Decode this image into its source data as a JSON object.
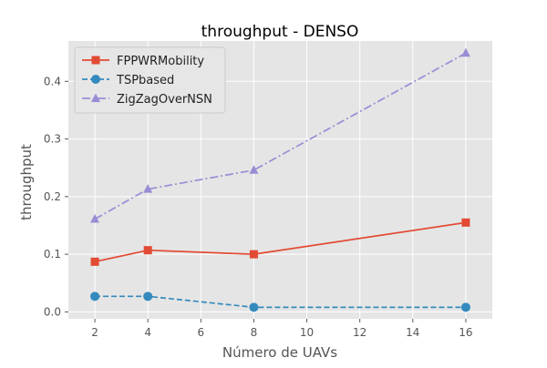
{
  "chart_data": {
    "type": "line",
    "title": "throughput - DENSO",
    "xlabel": "Número de UAVs",
    "ylabel": "throughput",
    "x": [
      2,
      4,
      8,
      16
    ],
    "xlim": [
      1,
      17
    ],
    "ylim": [
      -0.012,
      0.47
    ],
    "xticks": [
      2,
      4,
      6,
      8,
      10,
      12,
      14,
      16
    ],
    "xtick_labels": [
      "2",
      "4",
      "6",
      "8",
      "10",
      "12",
      "14",
      "16"
    ],
    "yticks": [
      0.0,
      0.1,
      0.2,
      0.3,
      0.4
    ],
    "ytick_labels": [
      "0.0",
      "0.1",
      "0.2",
      "0.3",
      "0.4"
    ],
    "grid": true,
    "legend_position": "top-left",
    "series": [
      {
        "name": "FPPWRMobility",
        "values": [
          0.087,
          0.107,
          0.1,
          0.155
        ],
        "color": "#E24A33",
        "marker": "square",
        "dash": "solid"
      },
      {
        "name": "TSPbased",
        "values": [
          0.027,
          0.027,
          0.008,
          0.008
        ],
        "color": "#348ABD",
        "marker": "circle",
        "dash": "dashed"
      },
      {
        "name": "ZigZagOverNSN",
        "values": [
          0.161,
          0.213,
          0.246,
          0.449
        ],
        "color": "#988ED5",
        "marker": "triangle",
        "dash": "dashdot"
      }
    ]
  },
  "style": {
    "plot_background": "#E5E5E5",
    "grid_color": "#FFFFFF",
    "text_color": "#555555",
    "title_color": "#000000"
  }
}
